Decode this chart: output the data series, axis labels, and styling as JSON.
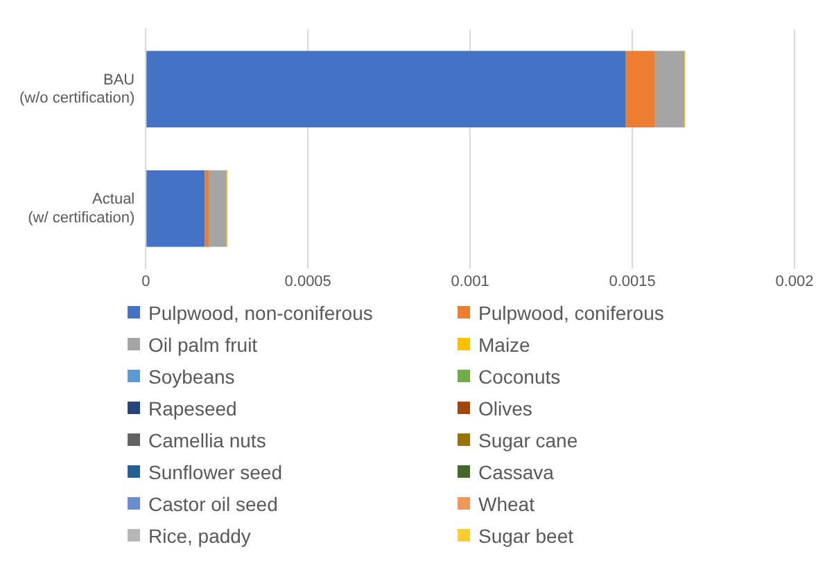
{
  "chart_data": {
    "type": "bar",
    "orientation": "horizontal",
    "stacked": true,
    "categories": [
      "BAU (w/o certification)",
      "Actual (w/ certification)"
    ],
    "series": [
      {
        "name": "Pulpwood, non-coniferous",
        "color": "#4472c4",
        "values": [
          0.00148,
          0.000182
        ]
      },
      {
        "name": "Pulpwood, coniferous",
        "color": "#ed7d31",
        "values": [
          9e-05,
          1.2e-05
        ]
      },
      {
        "name": "Oil palm fruit",
        "color": "#a5a5a5",
        "values": [
          9e-05,
          5.5e-05
        ]
      },
      {
        "name": "Maize",
        "color": "#ffc000",
        "values": [
          3e-06,
          3e-06
        ]
      },
      {
        "name": "Soybeans",
        "color": "#5b9bd5",
        "values": [
          0,
          0
        ]
      },
      {
        "name": "Coconuts",
        "color": "#70ad47",
        "values": [
          0,
          0
        ]
      },
      {
        "name": "Rapeseed",
        "color": "#264478",
        "values": [
          0,
          0
        ]
      },
      {
        "name": "Olives",
        "color": "#9e480e",
        "values": [
          0,
          0
        ]
      },
      {
        "name": "Camellia nuts",
        "color": "#636363",
        "values": [
          0,
          0
        ]
      },
      {
        "name": "Sugar cane",
        "color": "#997300",
        "values": [
          0,
          0
        ]
      },
      {
        "name": "Sunflower seed",
        "color": "#255e91",
        "values": [
          0,
          0
        ]
      },
      {
        "name": "Cassava",
        "color": "#43682b",
        "values": [
          0,
          0
        ]
      },
      {
        "name": "Castor oil seed",
        "color": "#698ed0",
        "values": [
          0,
          0
        ]
      },
      {
        "name": "Wheat",
        "color": "#f1975a",
        "values": [
          0,
          0
        ]
      },
      {
        "name": "Rice, paddy",
        "color": "#b7b7b7",
        "values": [
          0,
          0
        ]
      },
      {
        "name": "Sugar beet",
        "color": "#ffcd33",
        "values": [
          0,
          0
        ]
      }
    ],
    "xlim": [
      0,
      0.002
    ],
    "xticks": [
      0,
      0.0005,
      0.001,
      0.0015,
      0.002
    ],
    "grid": "x",
    "legend": "bottom"
  }
}
